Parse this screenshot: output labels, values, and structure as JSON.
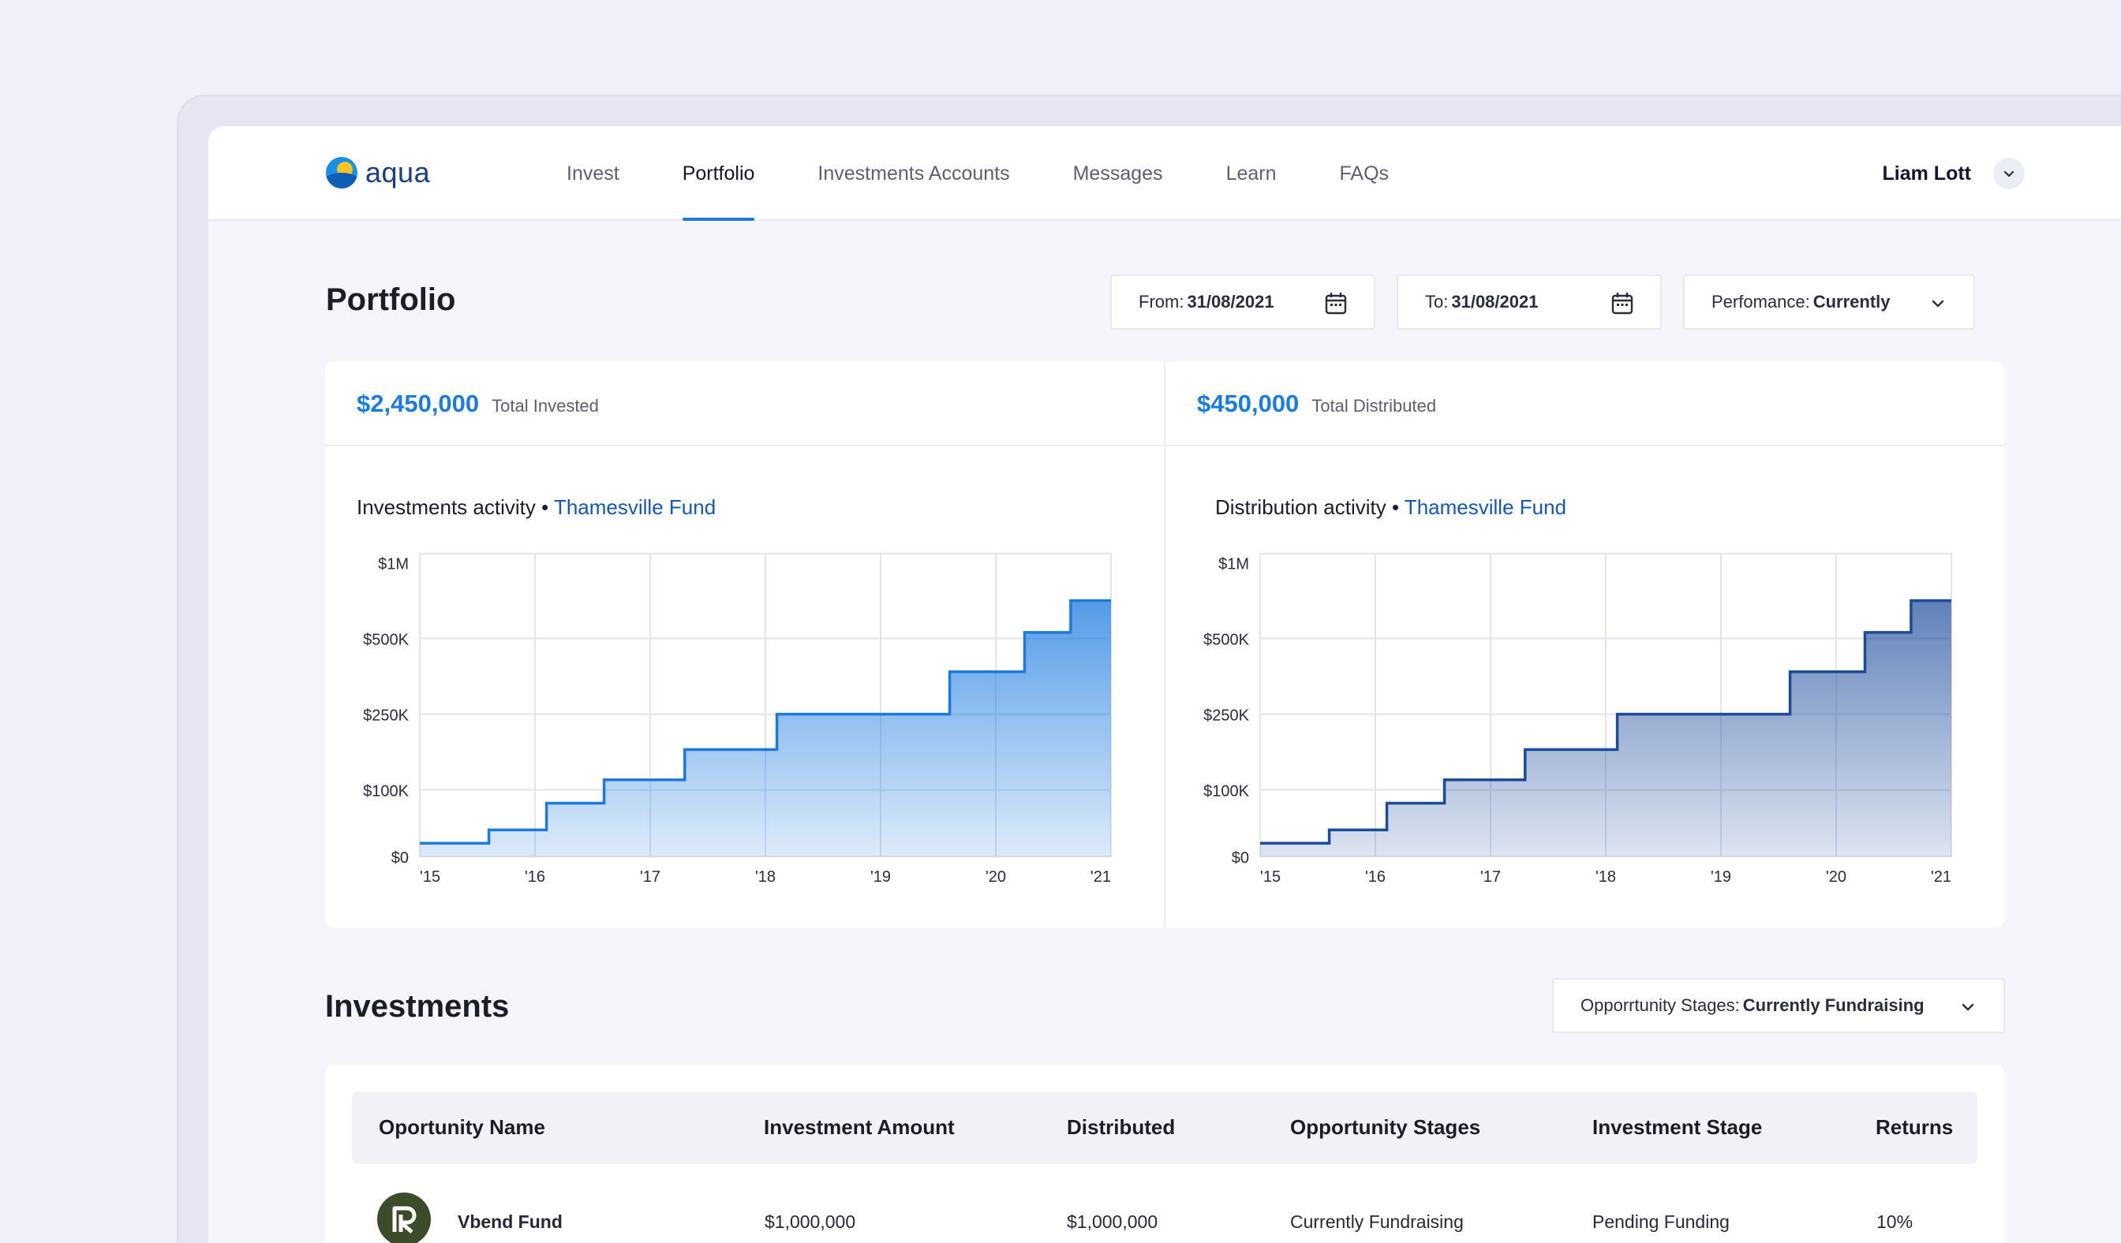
{
  "app": {
    "logo_text": "aqua"
  },
  "nav": {
    "items": [
      {
        "label": "Invest"
      },
      {
        "label": "Portfolio",
        "active": true
      },
      {
        "label": "Investments Accounts"
      },
      {
        "label": "Messages"
      },
      {
        "label": "Learn"
      },
      {
        "label": "FAQs"
      }
    ]
  },
  "user": {
    "name": "Liam Lott",
    "menu_icon": "chevron-down-icon"
  },
  "portfolio": {
    "title": "Portfolio",
    "from": {
      "label": "From:",
      "value": "31/08/2021",
      "icon": "calendar-icon"
    },
    "to": {
      "label": "To:",
      "value": "31/08/2021",
      "icon": "calendar-icon"
    },
    "performance": {
      "label": "Perfomance:",
      "value": "Currently",
      "icon": "chevron-down-icon"
    }
  },
  "summary": {
    "invested": {
      "amount": "$2,450,000",
      "label": "Total Invested"
    },
    "distributed": {
      "amount": "$450,000",
      "label": "Total Distributed"
    }
  },
  "charts": {
    "investments": {
      "title": "Investments activity •",
      "fund": "Thamesville Fund"
    },
    "distribution": {
      "title": "Distribution activity •",
      "fund": "Thamesville Fund"
    }
  },
  "chart_data": [
    {
      "type": "area",
      "title": "Investments activity • Thamesville Fund",
      "step": true,
      "x_tick_labels": [
        "'15",
        "'16",
        "'17",
        "'18",
        "'19",
        "'20",
        "'21"
      ],
      "y_tick_labels": [
        "$0",
        "$100K",
        "$250K",
        "$500K",
        "$1M"
      ],
      "y_tick_values": [
        0,
        100000,
        250000,
        500000,
        1000000
      ],
      "xlim": [
        2015,
        2021
      ],
      "ylim": [
        0,
        1000000
      ],
      "x": [
        2015.0,
        2015.6,
        2016.1,
        2016.6,
        2017.3,
        2018.1,
        2019.6,
        2020.25,
        2020.65,
        2021.0
      ],
      "values": [
        20000,
        40000,
        80000,
        120000,
        180000,
        250000,
        390000,
        540000,
        750000,
        750000
      ],
      "color": "#1b7ae0",
      "grid": true
    },
    {
      "type": "area",
      "title": "Distribution activity • Thamesville Fund",
      "step": true,
      "x_tick_labels": [
        "'15",
        "'16",
        "'17",
        "'18",
        "'19",
        "'20",
        "'21"
      ],
      "y_tick_labels": [
        "$0",
        "$100K",
        "$250K",
        "$500K",
        "$1M"
      ],
      "y_tick_values": [
        0,
        100000,
        250000,
        500000,
        1000000
      ],
      "xlim": [
        2015,
        2021
      ],
      "ylim": [
        0,
        1000000
      ],
      "x": [
        2015.0,
        2015.6,
        2016.1,
        2016.6,
        2017.3,
        2018.1,
        2019.6,
        2020.25,
        2020.65,
        2021.0
      ],
      "values": [
        20000,
        40000,
        80000,
        120000,
        180000,
        250000,
        390000,
        540000,
        750000,
        750000
      ],
      "color": "#1c4b9c",
      "grid": true
    }
  ],
  "investments": {
    "title": "Investments",
    "stage_filter": {
      "label": "Opporrtunity Stages:",
      "value": "Currently Fundraising",
      "icon": "chevron-down-icon"
    },
    "columns": [
      "Oportunity Name",
      "Investment Amount",
      "Distributed",
      "Opportunity Stages",
      "Investment Stage",
      "Returns"
    ],
    "rows": [
      {
        "name": "Vbend Fund",
        "avatar_icon": "fund-logo-icon",
        "amount": "$1,000,000",
        "distributed": "$1,000,000",
        "opportunity_stage": "Currently Fundraising",
        "investment_stage": "Pending Funding",
        "returns": "10%"
      }
    ]
  },
  "colors": {
    "accent": "#1b7ae0",
    "fund_link": "#1557b8",
    "chart_invest": "#1b7ae0",
    "chart_distribution": "#1c4b9c",
    "background": "#eff0f9"
  }
}
